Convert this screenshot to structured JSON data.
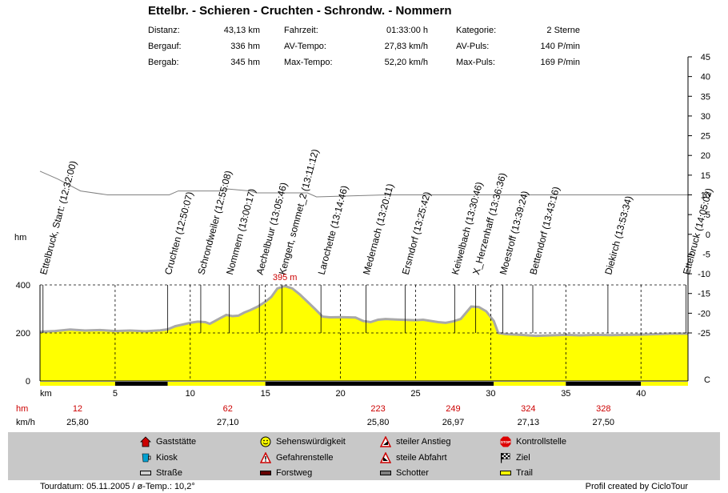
{
  "title": "Ettelbr. - Schieren - Cruchten - Schrondw. - Nommern",
  "stats": [
    {
      "label": "Distanz:",
      "value": "43,13 km"
    },
    {
      "label": "Bergauf:",
      "value": "336 hm"
    },
    {
      "label": "Bergab:",
      "value": "345 hm"
    },
    {
      "label": "Fahrzeit:",
      "value": "01:33:00 h"
    },
    {
      "label": "AV-Tempo:",
      "value": "27,83 km/h"
    },
    {
      "label": "Max-Tempo:",
      "value": "52,20 km/h"
    },
    {
      "label": "Kategorie:",
      "value": "2 Sterne"
    },
    {
      "label": "AV-Puls:",
      "value": "140 P/min"
    },
    {
      "label": "Max-Puls:",
      "value": "169 P/min"
    }
  ],
  "chart_data": {
    "type": "area",
    "elevation_profile": {
      "x_unit": "km",
      "y_unit": "hm",
      "xlim": [
        0,
        43.13
      ],
      "ylim": [
        0,
        400
      ],
      "x_ticks": [
        5,
        10,
        15,
        20,
        25,
        30,
        35,
        40
      ],
      "y_ticks": [
        0,
        200,
        400
      ],
      "points": [
        [
          0,
          205
        ],
        [
          1,
          208
        ],
        [
          2,
          214
        ],
        [
          3,
          210
        ],
        [
          4,
          212
        ],
        [
          5,
          208
        ],
        [
          6,
          210
        ],
        [
          7,
          207
        ],
        [
          8,
          211
        ],
        [
          8.5,
          215
        ],
        [
          9,
          228
        ],
        [
          9.5,
          235
        ],
        [
          10,
          242
        ],
        [
          10.5,
          247
        ],
        [
          11,
          245
        ],
        [
          11.3,
          238
        ],
        [
          11.6,
          248
        ],
        [
          12,
          262
        ],
        [
          12.4,
          275
        ],
        [
          12.8,
          270
        ],
        [
          13.2,
          272
        ],
        [
          13.6,
          285
        ],
        [
          14,
          295
        ],
        [
          14.5,
          310
        ],
        [
          15,
          330
        ],
        [
          15.4,
          350
        ],
        [
          15.8,
          385
        ],
        [
          16.3,
          395
        ],
        [
          16.8,
          385
        ],
        [
          17.3,
          360
        ],
        [
          17.8,
          330
        ],
        [
          18.3,
          300
        ],
        [
          18.8,
          268
        ],
        [
          19.3,
          265
        ],
        [
          20,
          266
        ],
        [
          21,
          264
        ],
        [
          21.5,
          250
        ],
        [
          22,
          245
        ],
        [
          22.5,
          255
        ],
        [
          23,
          258
        ],
        [
          24,
          255
        ],
        [
          25,
          253
        ],
        [
          25.5,
          255
        ],
        [
          26,
          250
        ],
        [
          26.5,
          245
        ],
        [
          27,
          242
        ],
        [
          27.5,
          248
        ],
        [
          28,
          258
        ],
        [
          28.3,
          280
        ],
        [
          28.7,
          310
        ],
        [
          29.2,
          308
        ],
        [
          29.7,
          290
        ],
        [
          30.2,
          250
        ],
        [
          30.5,
          200
        ],
        [
          31,
          195
        ],
        [
          32,
          192
        ],
        [
          33,
          188
        ],
        [
          34,
          190
        ],
        [
          35,
          192
        ],
        [
          36,
          190
        ],
        [
          37,
          192
        ],
        [
          38,
          191
        ],
        [
          39,
          192
        ],
        [
          40,
          193
        ],
        [
          41,
          195
        ],
        [
          42,
          197
        ],
        [
          43.13,
          197
        ]
      ],
      "max_label": "395 m",
      "max_at_km": 16.3
    },
    "speed_profile": {
      "y_unit": "km/h",
      "ylim": [
        -25,
        45
      ],
      "y_ticks": [
        45,
        40,
        35,
        30,
        25,
        20,
        15,
        10,
        5,
        0,
        -5,
        -10,
        -15,
        -20,
        -25
      ],
      "y_tick_labels": [
        "45",
        "40",
        "35",
        "30",
        "25",
        "20",
        "15",
        "10",
        "5",
        "0",
        "-5",
        "-10",
        "-15",
        "-20",
        "-25"
      ],
      "points": [
        [
          0,
          16
        ],
        [
          1.2,
          14
        ],
        [
          2.7,
          11
        ],
        [
          4.5,
          10
        ],
        [
          6,
          10
        ],
        [
          8.6,
          10
        ],
        [
          9.2,
          11
        ],
        [
          12,
          11
        ],
        [
          12.5,
          11.5
        ],
        [
          14,
          11
        ],
        [
          14.4,
          10.5
        ],
        [
          17.8,
          10.5
        ],
        [
          18.4,
          9.5
        ],
        [
          23,
          10
        ],
        [
          29.8,
          10
        ],
        [
          31,
          10
        ],
        [
          43.13,
          10
        ]
      ]
    },
    "waypoints": [
      {
        "km": 0.2,
        "label": "Ettelbruck, Start: (12:32:00)"
      },
      {
        "km": 8.5,
        "label": "Cruchten (12:50:07)"
      },
      {
        "km": 10.7,
        "label": "Schrondweiler (12:55:08)"
      },
      {
        "km": 12.6,
        "label": "Nommern (13:00:17)"
      },
      {
        "km": 14.6,
        "label": "Aechelbuur (13:05:46)"
      },
      {
        "km": 16.1,
        "label": "Kengert, sommet_2 (13:11:12)"
      },
      {
        "km": 18.7,
        "label": "Larochette (13:14:46)"
      },
      {
        "km": 21.7,
        "label": "Medernach (13:20:11)"
      },
      {
        "km": 24.3,
        "label": "Ersmdorf (13:25:42)"
      },
      {
        "km": 27.6,
        "label": "Keiwelbach (13:30:46)"
      },
      {
        "km": 29,
        "label": "X_Herzenhaff (13:36:36)"
      },
      {
        "km": 30.8,
        "label": "Moestroff (13:39:24)"
      },
      {
        "km": 32.8,
        "label": "Bettendorf (13:43:16)"
      },
      {
        "km": 37.8,
        "label": "Diekirch (13:53:34)"
      },
      {
        "km": 43,
        "label": "Ettelbruck (14:05:02)"
      }
    ],
    "surface_segments": [
      {
        "from": 0,
        "to": 5,
        "type": "Trail"
      },
      {
        "from": 5,
        "to": 8.5,
        "type": "Forstweg"
      },
      {
        "from": 8.5,
        "to": 15,
        "type": "Trail"
      },
      {
        "from": 15,
        "to": 30.2,
        "type": "Forstweg"
      },
      {
        "from": 30.2,
        "to": 35,
        "type": "Trail"
      },
      {
        "from": 35,
        "to": 40,
        "type": "Forstweg"
      },
      {
        "from": 40,
        "to": 43.13,
        "type": "Trail"
      }
    ],
    "dashed_x": [
      5,
      10,
      15,
      20,
      25,
      30,
      35,
      40
    ],
    "axis_labels": {
      "left": "hm",
      "bottom_row1": "km",
      "bottom_row2": "hm",
      "bottom_row3": "km/h"
    },
    "right_axis_end_label": "C",
    "segments_hm": [
      {
        "at_km": 2.5,
        "value": "12"
      },
      {
        "at_km": 12.5,
        "value": "62"
      },
      {
        "at_km": 22.5,
        "value": "223"
      },
      {
        "at_km": 27.5,
        "value": "249"
      },
      {
        "at_km": 32.5,
        "value": "324"
      },
      {
        "at_km": 37.5,
        "value": "328"
      }
    ],
    "segments_kmh": [
      {
        "at_km": 2.5,
        "value": "25,80"
      },
      {
        "at_km": 12.5,
        "value": "27,10"
      },
      {
        "at_km": 22.5,
        "value": "25,80"
      },
      {
        "at_km": 27.5,
        "value": "26,97"
      },
      {
        "at_km": 32.5,
        "value": "27,13"
      },
      {
        "at_km": 37.5,
        "value": "27,50"
      }
    ],
    "colors": {
      "fill": "#ffff00",
      "outline": "#a8a8a8",
      "speed": "#808080",
      "hm": "#cc0000",
      "max": "#cc0000",
      "surface_black": "#000000"
    }
  },
  "legend": [
    {
      "icon": "house-icon",
      "label": "Gaststätte"
    },
    {
      "icon": "smiley-icon",
      "label": "Sehenswürdigkeit"
    },
    {
      "icon": "steep-climb-icon",
      "label": "steiler Anstieg"
    },
    {
      "icon": "stop-sign-icon",
      "label": "Kontrollstelle"
    },
    {
      "icon": "kiosk-icon",
      "label": "Kiosk"
    },
    {
      "icon": "warning-icon",
      "label": "Gefahrenstelle"
    },
    {
      "icon": "steep-descent-icon",
      "label": "steile Abfahrt"
    },
    {
      "icon": "finish-flag-icon",
      "label": "Ziel"
    },
    {
      "icon": "road-swatch-icon",
      "label": "Straße"
    },
    {
      "icon": "forest-road-swatch-icon",
      "label": "Forstweg"
    },
    {
      "icon": "gravel-swatch-icon",
      "label": "Schotter"
    },
    {
      "icon": "trail-swatch-icon",
      "label": "Trail"
    }
  ],
  "footer": {
    "left": "Tourdatum: 05.11.2005  /  ø-Temp.: 10,2°",
    "right": "Profil created by CicloTour"
  }
}
